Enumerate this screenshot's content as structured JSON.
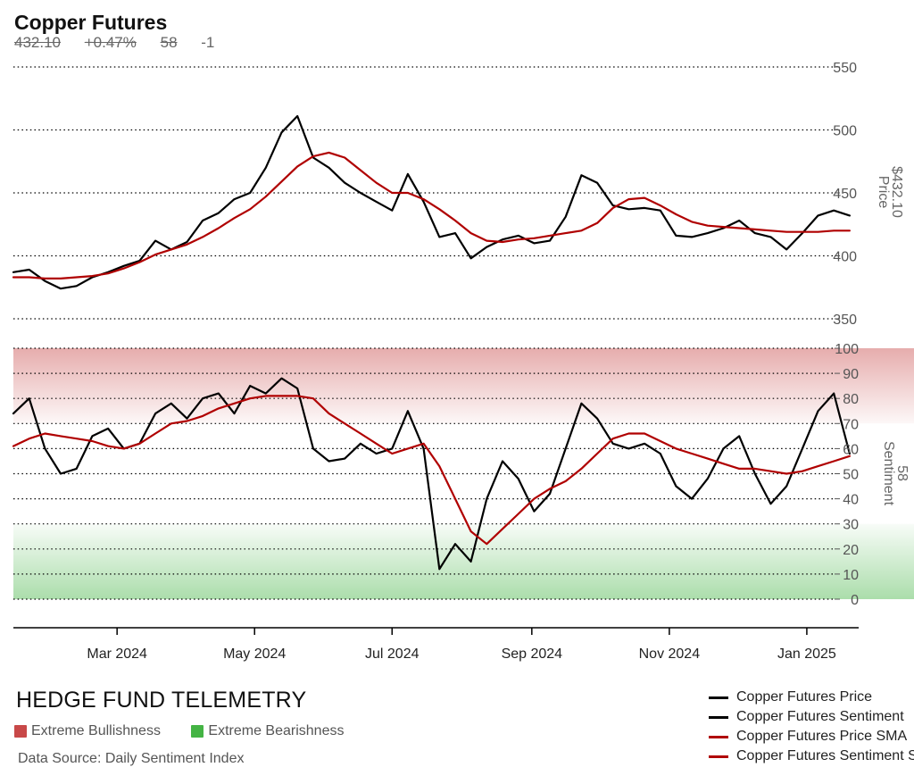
{
  "header": {
    "title": "Copper Futures",
    "stats": [
      "432.10",
      "+0.47%",
      "58",
      "-1"
    ]
  },
  "footer": {
    "brand": "HEDGE FUND TELEMETRY",
    "key_bull": "Extreme Bullishness",
    "key_bear": "Extreme Bearishness",
    "source": "Data Source: Daily Sentiment Index"
  },
  "legend": [
    {
      "label": "Copper Futures Price",
      "color": "#000000"
    },
    {
      "label": "Copper Futures Sentiment",
      "color": "#000000"
    },
    {
      "label": "Copper Futures Price SMA",
      "color": "#b00000"
    },
    {
      "label": "Copper Futures Sentiment SMA",
      "color": "#b00000"
    }
  ],
  "colors": {
    "price": "#000000",
    "sma": "#b00000",
    "bull_zone": "#c84848",
    "bear_zone": "#44b444",
    "grid": "#000000"
  },
  "chart_data": [
    {
      "type": "line",
      "title": "Copper Futures",
      "ylabel": "Price",
      "ylabel_value": "$432.10",
      "ylim": [
        350,
        550
      ],
      "yticks": [
        "350",
        "400",
        "450",
        "500",
        "550"
      ],
      "x_ticks": [
        "Mar 2024",
        "May 2024",
        "Jul 2024",
        "Sep 2024",
        "Nov 2024",
        "Jan 2025"
      ],
      "x": [
        "2024-01-15",
        "2024-01-22",
        "2024-01-29",
        "2024-02-05",
        "2024-02-12",
        "2024-02-19",
        "2024-02-26",
        "2024-03-04",
        "2024-03-11",
        "2024-03-18",
        "2024-03-25",
        "2024-04-01",
        "2024-04-08",
        "2024-04-15",
        "2024-04-22",
        "2024-04-29",
        "2024-05-06",
        "2024-05-13",
        "2024-05-20",
        "2024-05-27",
        "2024-06-03",
        "2024-06-10",
        "2024-06-17",
        "2024-06-24",
        "2024-07-01",
        "2024-07-08",
        "2024-07-15",
        "2024-07-22",
        "2024-07-29",
        "2024-08-05",
        "2024-08-12",
        "2024-08-19",
        "2024-08-26",
        "2024-09-02",
        "2024-09-09",
        "2024-09-16",
        "2024-09-23",
        "2024-09-30",
        "2024-10-07",
        "2024-10-14",
        "2024-10-21",
        "2024-10-28",
        "2024-11-04",
        "2024-11-11",
        "2024-11-18",
        "2024-11-25",
        "2024-12-02",
        "2024-12-09",
        "2024-12-16",
        "2024-12-23",
        "2024-12-30",
        "2025-01-06",
        "2025-01-13",
        "2025-01-20"
      ],
      "series": [
        {
          "name": "Copper Futures Price",
          "color": "#000000",
          "values": [
            387,
            389,
            380,
            374,
            376,
            383,
            387,
            392,
            396,
            412,
            405,
            411,
            428,
            434,
            445,
            450,
            470,
            498,
            511,
            478,
            470,
            458,
            450,
            443,
            436,
            465,
            443,
            415,
            418,
            398,
            407,
            413,
            416,
            410,
            412,
            431,
            464,
            458,
            440,
            437,
            438,
            436,
            416,
            415,
            418,
            422,
            428,
            418,
            415,
            405,
            418,
            432,
            436,
            432
          ]
        },
        {
          "name": "Copper Futures Price SMA",
          "color": "#b00000",
          "values": [
            383,
            383,
            382,
            382,
            383,
            384,
            386,
            390,
            395,
            401,
            405,
            409,
            415,
            422,
            430,
            437,
            447,
            459,
            471,
            479,
            482,
            478,
            468,
            458,
            450,
            450,
            445,
            437,
            428,
            418,
            412,
            411,
            413,
            414,
            416,
            418,
            420,
            426,
            438,
            445,
            446,
            440,
            433,
            427,
            424,
            423,
            422,
            421,
            420,
            419,
            419,
            419,
            420,
            420
          ]
        }
      ]
    },
    {
      "type": "line",
      "ylabel": "Sentiment",
      "ylabel_value": "58",
      "ylim": [
        0,
        100
      ],
      "yticks": [
        "0",
        "10",
        "20",
        "30",
        "40",
        "50",
        "60",
        "70",
        "80",
        "90",
        "100"
      ],
      "zones": [
        {
          "label": "Extreme Bullishness",
          "from": 70,
          "to": 100
        },
        {
          "label": "Extreme Bearishness",
          "from": 0,
          "to": 30
        }
      ],
      "x": [
        "2024-01-15",
        "2024-01-22",
        "2024-01-29",
        "2024-02-05",
        "2024-02-12",
        "2024-02-19",
        "2024-02-26",
        "2024-03-04",
        "2024-03-11",
        "2024-03-18",
        "2024-03-25",
        "2024-04-01",
        "2024-04-08",
        "2024-04-15",
        "2024-04-22",
        "2024-04-29",
        "2024-05-06",
        "2024-05-13",
        "2024-05-20",
        "2024-05-27",
        "2024-06-03",
        "2024-06-10",
        "2024-06-17",
        "2024-06-24",
        "2024-07-01",
        "2024-07-08",
        "2024-07-15",
        "2024-07-22",
        "2024-07-29",
        "2024-08-05",
        "2024-08-12",
        "2024-08-19",
        "2024-08-26",
        "2024-09-02",
        "2024-09-09",
        "2024-09-16",
        "2024-09-23",
        "2024-09-30",
        "2024-10-07",
        "2024-10-14",
        "2024-10-21",
        "2024-10-28",
        "2024-11-04",
        "2024-11-11",
        "2024-11-18",
        "2024-11-25",
        "2024-12-02",
        "2024-12-09",
        "2024-12-16",
        "2024-12-23",
        "2024-12-30",
        "2025-01-06",
        "2025-01-13",
        "2025-01-20"
      ],
      "series": [
        {
          "name": "Copper Futures Sentiment",
          "color": "#000000",
          "values": [
            74,
            80,
            60,
            50,
            52,
            65,
            68,
            60,
            62,
            74,
            78,
            72,
            80,
            82,
            74,
            85,
            82,
            88,
            84,
            60,
            55,
            56,
            62,
            58,
            60,
            75,
            60,
            12,
            22,
            15,
            40,
            55,
            48,
            35,
            42,
            60,
            78,
            72,
            62,
            60,
            62,
            58,
            45,
            40,
            48,
            60,
            65,
            50,
            38,
            45,
            60,
            75,
            82,
            58
          ]
        },
        {
          "name": "Copper Futures Sentiment SMA",
          "color": "#b00000",
          "values": [
            61,
            64,
            66,
            65,
            64,
            63,
            61,
            60,
            62,
            66,
            70,
            71,
            73,
            76,
            78,
            80,
            81,
            81,
            81,
            80,
            74,
            70,
            66,
            62,
            58,
            60,
            62,
            53,
            40,
            27,
            22,
            28,
            34,
            40,
            44,
            47,
            52,
            58,
            64,
            66,
            66,
            63,
            60,
            58,
            56,
            54,
            52,
            52,
            51,
            50,
            51,
            53,
            55,
            57
          ]
        }
      ]
    }
  ]
}
